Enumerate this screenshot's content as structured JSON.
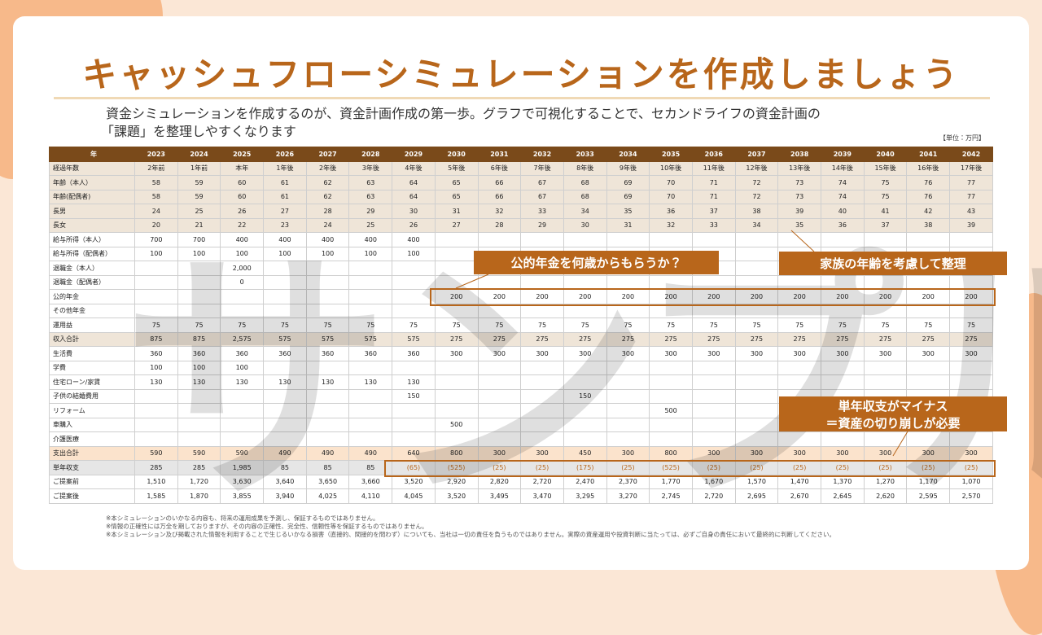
{
  "header": {
    "title": "キャッシュフローシミュレーションを作成しましょう",
    "description": [
      "資金シミュレーションを作成するのが、資金計画作成の第一歩。グラフで可視化することで、セカンドライフの資金計画の",
      "「課題」を整理しやすくなります"
    ],
    "unit": "【単位：万円】"
  },
  "watermark": "サンプル",
  "table": {
    "columns": [
      "年",
      "2023",
      "2024",
      "2025",
      "2026",
      "2027",
      "2028",
      "2029",
      "2030",
      "2031",
      "2032",
      "2033",
      "2034",
      "2035",
      "2036",
      "2037",
      "2038",
      "2039",
      "2040",
      "2041",
      "2042"
    ],
    "rows": [
      [
        "経過年数",
        "2年前",
        "1年前",
        "本年",
        "1年後",
        "2年後",
        "3年後",
        "4年後",
        "5年後",
        "6年後",
        "7年後",
        "8年後",
        "9年後",
        "10年後",
        "11年後",
        "12年後",
        "13年後",
        "14年後",
        "15年後",
        "16年後",
        "17年後"
      ],
      [
        "年齢（本人）",
        "58",
        "59",
        "60",
        "61",
        "62",
        "63",
        "64",
        "65",
        "66",
        "67",
        "68",
        "69",
        "70",
        "71",
        "72",
        "73",
        "74",
        "75",
        "76",
        "77"
      ],
      [
        "年齢(配偶者)",
        "58",
        "59",
        "60",
        "61",
        "62",
        "63",
        "64",
        "65",
        "66",
        "67",
        "68",
        "69",
        "70",
        "71",
        "72",
        "73",
        "74",
        "75",
        "76",
        "77"
      ],
      [
        "長男",
        "24",
        "25",
        "26",
        "27",
        "28",
        "29",
        "30",
        "31",
        "32",
        "33",
        "34",
        "35",
        "36",
        "37",
        "38",
        "39",
        "40",
        "41",
        "42",
        "43"
      ],
      [
        "長女",
        "20",
        "21",
        "22",
        "23",
        "24",
        "25",
        "26",
        "27",
        "28",
        "29",
        "30",
        "31",
        "32",
        "33",
        "34",
        "35",
        "36",
        "37",
        "38",
        "39"
      ],
      [
        "給与所得（本人）",
        "700",
        "700",
        "400",
        "400",
        "400",
        "400",
        "400",
        null,
        null,
        null,
        null,
        null,
        null,
        null,
        null,
        null,
        null,
        null,
        null,
        null
      ],
      [
        "給与所得（配偶者）",
        "100",
        "100",
        "100",
        "100",
        "100",
        "100",
        "100",
        null,
        null,
        null,
        null,
        null,
        null,
        null,
        null,
        null,
        null,
        null,
        null,
        null
      ],
      [
        "退職金（本人）",
        null,
        null,
        "2,000",
        null,
        null,
        null,
        null,
        null,
        null,
        null,
        null,
        null,
        null,
        null,
        null,
        null,
        null,
        null,
        null,
        null
      ],
      [
        "退職金（配偶者）",
        null,
        null,
        "0",
        null,
        null,
        null,
        null,
        null,
        null,
        null,
        null,
        null,
        null,
        null,
        null,
        null,
        null,
        null,
        null,
        null
      ],
      [
        "公的年金",
        null,
        null,
        null,
        null,
        null,
        null,
        null,
        "200",
        "200",
        "200",
        "200",
        "200",
        "200",
        "200",
        "200",
        "200",
        "200",
        "200",
        "200",
        "200"
      ],
      [
        "その他年金",
        null,
        null,
        null,
        null,
        null,
        null,
        null,
        null,
        null,
        null,
        null,
        null,
        null,
        null,
        null,
        null,
        null,
        null,
        null,
        null
      ],
      [
        "運用益",
        "75",
        "75",
        "75",
        "75",
        "75",
        "75",
        "75",
        "75",
        "75",
        "75",
        "75",
        "75",
        "75",
        "75",
        "75",
        "75",
        "75",
        "75",
        "75",
        "75"
      ],
      [
        "収入合計",
        "875",
        "875",
        "2,575",
        "575",
        "575",
        "575",
        "575",
        "275",
        "275",
        "275",
        "275",
        "275",
        "275",
        "275",
        "275",
        "275",
        "275",
        "275",
        "275",
        "275"
      ],
      [
        "生活費",
        "360",
        "360",
        "360",
        "360",
        "360",
        "360",
        "360",
        "300",
        "300",
        "300",
        "300",
        "300",
        "300",
        "300",
        "300",
        "300",
        "300",
        "300",
        "300",
        "300"
      ],
      [
        "学費",
        "100",
        "100",
        "100",
        null,
        null,
        null,
        null,
        null,
        null,
        null,
        null,
        null,
        null,
        null,
        null,
        null,
        null,
        null,
        null,
        null
      ],
      [
        "住宅ローン/家賃",
        "130",
        "130",
        "130",
        "130",
        "130",
        "130",
        "130",
        null,
        null,
        null,
        null,
        null,
        null,
        null,
        null,
        null,
        null,
        null,
        null,
        null
      ],
      [
        "子供の結婚費用",
        null,
        null,
        null,
        null,
        null,
        null,
        "150",
        null,
        null,
        null,
        "150",
        null,
        null,
        null,
        null,
        null,
        null,
        null,
        null,
        null
      ],
      [
        "リフォーム",
        null,
        null,
        null,
        null,
        null,
        null,
        null,
        null,
        null,
        null,
        null,
        null,
        "500",
        null,
        null,
        null,
        null,
        null,
        null,
        null
      ],
      [
        "車購入",
        null,
        null,
        null,
        null,
        null,
        null,
        null,
        "500",
        null,
        null,
        null,
        null,
        null,
        null,
        null,
        null,
        null,
        null,
        null,
        null
      ],
      [
        "介護医療",
        null,
        null,
        null,
        null,
        null,
        null,
        null,
        null,
        null,
        null,
        null,
        null,
        null,
        null,
        null,
        null,
        null,
        null,
        null,
        null
      ],
      [
        "支出合計",
        "590",
        "590",
        "590",
        "490",
        "490",
        "490",
        "640",
        "800",
        "300",
        "300",
        "450",
        "300",
        "800",
        "300",
        "300",
        "300",
        "300",
        "300",
        "300",
        "300"
      ],
      [
        "単年収支",
        "285",
        "285",
        "1,985",
        "85",
        "85",
        "85",
        "(65)",
        "(525)",
        "(25)",
        "(25)",
        "(175)",
        "(25)",
        "(525)",
        "(25)",
        "(25)",
        "(25)",
        "(25)",
        "(25)",
        "(25)",
        "(25)"
      ],
      [
        "ご提案前",
        "1,510",
        "1,720",
        "3,630",
        "3,640",
        "3,650",
        "3,660",
        "3,520",
        "2,920",
        "2,820",
        "2,720",
        "2,470",
        "2,370",
        "1,770",
        "1,670",
        "1,570",
        "1,470",
        "1,370",
        "1,270",
        "1,170",
        "1,070"
      ],
      [
        "ご提案後",
        "1,585",
        "1,870",
        "3,855",
        "3,940",
        "4,025",
        "4,110",
        "4,045",
        "3,520",
        "3,495",
        "3,470",
        "3,295",
        "3,270",
        "2,745",
        "2,720",
        "2,695",
        "2,670",
        "2,645",
        "2,620",
        "2,595",
        "2,570"
      ]
    ]
  },
  "callouts": [
    [
      "公的年金を何歳からもらうか？"
    ],
    [
      "家族の年齢を考慮して整理"
    ],
    [
      "単年収支がマイナス",
      "＝資産の切り崩しが必要"
    ]
  ],
  "notes": [
    "※本シミュレーションのいかなる内容も、将来の運用成果を予測し、保証するものではありません。",
    "※情報の正確性には万全を期しておりますが、その内容の正確性、完全性、信頼性等を保証するものではありません。",
    "※本シミュレーション及び掲載された情報を利用することで生じるいかなる損害（直接的、間接的を問わず）についても、当社は一切の責任を負うものではありません。実際の資産運用や投資判断に当たっては、必ずご自身の責任において最終的に判断してください。"
  ]
}
